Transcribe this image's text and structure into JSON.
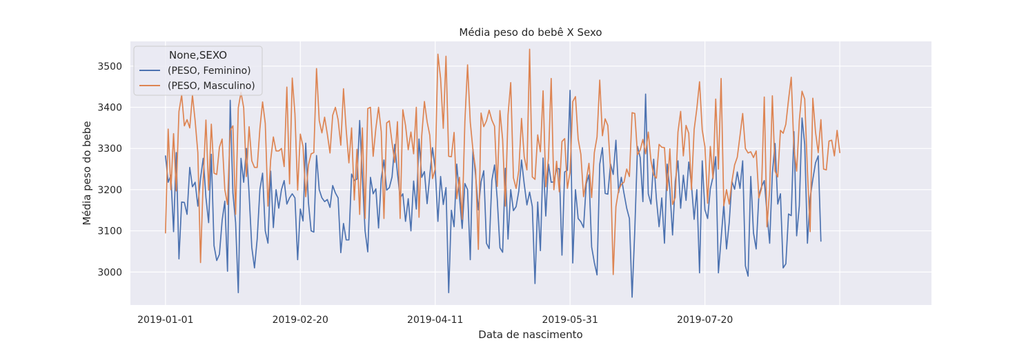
{
  "chart_data": {
    "type": "line",
    "title": "Média peso do bebê X Sexo",
    "xlabel": "Data de nascimento",
    "ylabel": "Média peso do bebe",
    "x_start": "2019-01-01",
    "x_end": "2019-09-30",
    "xlim": [
      "2018-12-19",
      "2019-10-12"
    ],
    "ylim": [
      2920,
      3560
    ],
    "x_ticks": [
      "2019-01-01",
      "2019-02-20",
      "2019-04-11",
      "2019-05-31",
      "2019-07-20",
      "2019-09-08"
    ],
    "x_tick_labels": [
      "2019-01-01",
      "2019-02-20",
      "2019-04-11",
      "2019-05-31",
      "2019-07-20",
      ""
    ],
    "y_ticks": [
      3000,
      3100,
      3200,
      3300,
      3400,
      3500
    ],
    "y_tick_labels": [
      "3000",
      "3100",
      "3200",
      "3300",
      "3400",
      "3500"
    ],
    "grid": true,
    "legend": {
      "title": "None,SEXO",
      "position": "top-left"
    },
    "series": [
      {
        "name": "(PESO, Feminino)",
        "color": "#4c72b0",
        "values": [
          3282,
          3218,
          3235,
          3098,
          3290,
          3032,
          3170,
          3169,
          3140,
          3254,
          3207,
          3218,
          3160,
          3228,
          3276,
          3181,
          3120,
          3286,
          3064,
          3028,
          3043,
          3125,
          3172,
          3002,
          3417,
          3192,
          3120,
          2950,
          3276,
          3218,
          3300,
          3190,
          3060,
          3010,
          3080,
          3200,
          3240,
          3100,
          3070,
          3245,
          3108,
          3200,
          3155,
          3200,
          3222,
          3165,
          3180,
          3190,
          3180,
          3030,
          3153,
          3124,
          3313,
          3169,
          3100,
          3097,
          3283,
          3200,
          3180,
          3171,
          3176,
          3157,
          3210,
          3192,
          3180,
          3047,
          3118,
          3078,
          3078,
          3238,
          3222,
          3226,
          3368,
          3230,
          3100,
          3049,
          3230,
          3190,
          3202,
          3107,
          3227,
          3272,
          3199,
          3205,
          3231,
          3310,
          3240,
          3180,
          3190,
          3123,
          3178,
          3100,
          3221,
          3153,
          3323,
          3230,
          3244,
          3166,
          3235,
          3302,
          3250,
          3123,
          3232,
          3164,
          3205,
          2950,
          3150,
          3110,
          3262,
          3181,
          3106,
          3215,
          3200,
          3030,
          3298,
          3233,
          3151,
          3219,
          3246,
          3070,
          3057,
          3222,
          3260,
          3177,
          3059,
          3048,
          3252,
          3080,
          3200,
          3149,
          3159,
          3197,
          3272,
          3214,
          3163,
          3194,
          3159,
          2972,
          3170,
          3052,
          3277,
          3136,
          3262,
          3218,
          3219,
          3251,
          3251,
          3041,
          3243,
          3247,
          3441,
          3022,
          3200,
          3130,
          3122,
          3108,
          3214,
          3236,
          3061,
          3023,
          2993,
          3262,
          3302,
          3191,
          3189,
          3262,
          3237,
          3320,
          3193,
          3230,
          3191,
          3155,
          3130,
          2939,
          3102,
          3305,
          3278,
          3171,
          3432,
          3190,
          3165,
          3274,
          3178,
          3110,
          3180,
          3070,
          3262,
          3200,
          3090,
          3220,
          3270,
          3155,
          3235,
          3174,
          3267,
          3213,
          3128,
          3200,
          2998,
          3270,
          3151,
          3130,
          3202,
          3231,
          3280,
          2998,
          3081,
          3165,
          3056,
          3120,
          3220,
          3201,
          3243,
          3203,
          3270,
          3015,
          2990,
          3232,
          3095,
          3056,
          3187,
          3207,
          3222,
          3143,
          3070,
          3240,
          3312,
          3165,
          3190,
          3010,
          3020,
          3141,
          3137,
          3341,
          3088,
          3161,
          3374,
          3310,
          3070,
          3180,
          3225,
          3265,
          3282,
          3075
        ]
      },
      {
        "name": "(PESO, Masculino)",
        "color": "#dd8452",
        "values": [
          3095,
          3347,
          3200,
          3336,
          3197,
          3390,
          3430,
          3355,
          3370,
          3350,
          3430,
          3367,
          3290,
          3023,
          3226,
          3369,
          3199,
          3359,
          3240,
          3237,
          3303,
          3323,
          3200,
          3164,
          3344,
          3355,
          3140,
          3399,
          3436,
          3399,
          3232,
          3353,
          3270,
          3254,
          3254,
          3348,
          3413,
          3361,
          3160,
          3272,
          3328,
          3294,
          3294,
          3300,
          3256,
          3449,
          3214,
          3471,
          3384,
          3199,
          3335,
          3305,
          3183,
          3260,
          3287,
          3290,
          3494,
          3368,
          3338,
          3376,
          3335,
          3289,
          3381,
          3400,
          3370,
          3308,
          3445,
          3345,
          3265,
          3350,
          3175,
          3298,
          3140,
          3350,
          3130,
          3397,
          3400,
          3281,
          3349,
          3400,
          3341,
          3130,
          3362,
          3367,
          3314,
          3266,
          3365,
          3130,
          3394,
          3356,
          3297,
          3340,
          3287,
          3400,
          3133,
          3330,
          3414,
          3365,
          3332,
          3227,
          3250,
          3529,
          3470,
          3349,
          3524,
          3281,
          3280,
          3339,
          3178,
          3230,
          3128,
          3365,
          3503,
          3364,
          3296,
          3248,
          3055,
          3386,
          3353,
          3367,
          3393,
          3369,
          3354,
          3208,
          3392,
          3322,
          3160,
          3381,
          3460,
          3229,
          3203,
          3247,
          3373,
          3280,
          3248,
          3541,
          3231,
          3225,
          3333,
          3292,
          3440,
          3207,
          3277,
          3470,
          3200,
          3269,
          3195,
          3317,
          3324,
          3203,
          3242,
          3414,
          3426,
          3323,
          3286,
          3183,
          3222,
          3264,
          3181,
          3290,
          3328,
          3466,
          3331,
          3372,
          3356,
          3250,
          2994,
          3159,
          3199,
          3213,
          3218,
          3250,
          3232,
          3387,
          3385,
          3285,
          3296,
          3322,
          3287,
          3340,
          3270,
          3236,
          3228,
          3310,
          3303,
          3302,
          3198,
          3299,
          3164,
          3181,
          3340,
          3390,
          3282,
          3356,
          3337,
          3200,
          3346,
          3397,
          3462,
          3345,
          3304,
          3167,
          3305,
          3227,
          3420,
          3250,
          3470,
          3161,
          3200,
          3165,
          3220,
          3260,
          3279,
          3331,
          3385,
          3300,
          3289,
          3292,
          3278,
          3294,
          3180,
          3203,
          3425,
          3110,
          3200,
          3428,
          3245,
          3231,
          3344,
          3337,
          3359,
          3419,
          3473,
          3300,
          3245,
          3368,
          3439,
          3420,
          3245,
          3098,
          3422,
          3340,
          3290,
          3370,
          3250,
          3248,
          3318,
          3320,
          3282,
          3344,
          3290
        ]
      }
    ]
  }
}
